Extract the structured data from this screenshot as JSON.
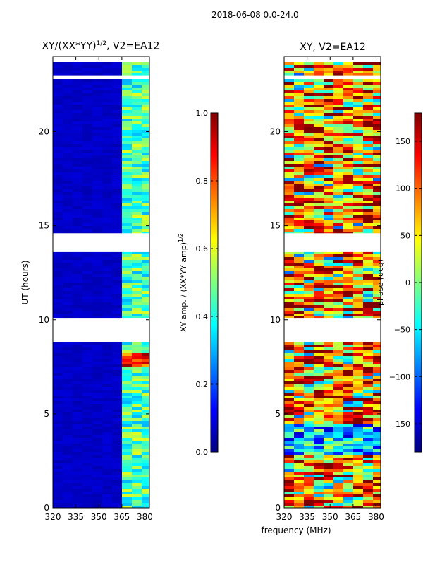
{
  "figure": {
    "suptitle": "2018-06-08 0.0-24.0",
    "shared_xlabel": "frequency (MHz)"
  },
  "chart_data": [
    {
      "type": "heatmap",
      "title": "XY/(XX*YY)^1/2, V2=EA12",
      "title_main": "XY/(XX*YY)",
      "title_exp": "1/2",
      "title_tail": ", V2=EA12",
      "xlabel": "frequency (MHz)",
      "ylabel": "UT (hours)",
      "xlim": [
        320,
        383
      ],
      "ylim": [
        0,
        24
      ],
      "xticks": [
        320,
        335,
        350,
        365,
        380
      ],
      "yticks": [
        0,
        5,
        10,
        15,
        20
      ],
      "colorbar": {
        "label": "XY amp. / (XX*YY amp)^1/2",
        "label_main": "XY amp. / (XX*YY amp)",
        "label_exp": "1/2",
        "range": [
          0.0,
          1.0
        ],
        "ticks": [
          "0.0",
          "0.2",
          "0.4",
          "0.6",
          "0.8",
          "1.0"
        ],
        "colormap": "jet"
      },
      "data_gaps_hours": [
        [
          14.6,
          13.6
        ],
        [
          10.1,
          8.9
        ],
        [
          23.0,
          22.8
        ]
      ]
    },
    {
      "type": "heatmap",
      "title": "XY, V2=EA12",
      "xlabel": "frequency (MHz)",
      "ylabel": "",
      "xlim": [
        320,
        383
      ],
      "ylim": [
        0,
        24
      ],
      "xticks": [
        320,
        335,
        350,
        365,
        380
      ],
      "yticks": [
        0,
        5,
        10,
        15,
        20
      ],
      "colorbar": {
        "label": "phase (deg)",
        "range": [
          -180,
          180
        ],
        "ticks": [
          "−150",
          "−100",
          "−50",
          "0",
          "50",
          "100",
          "150"
        ],
        "colormap": "jet"
      },
      "data_gaps_hours": [
        [
          14.6,
          13.6
        ],
        [
          10.1,
          8.9
        ],
        [
          23.0,
          22.8
        ]
      ]
    }
  ]
}
